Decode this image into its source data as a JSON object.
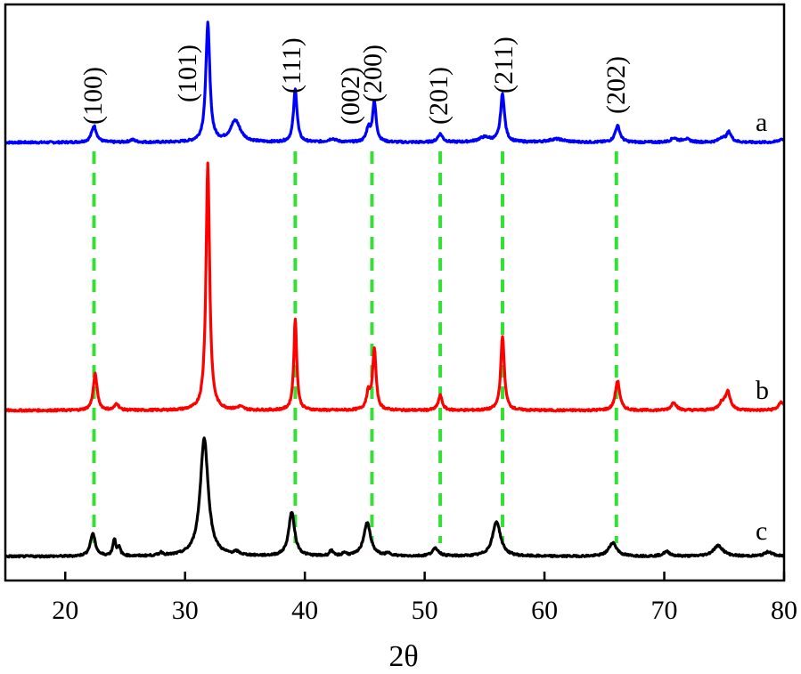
{
  "chart_data": {
    "type": "line",
    "title": "",
    "xlabel": "2θ",
    "ylabel": "",
    "xlim": [
      15,
      80
    ],
    "x_ticks": [
      20,
      30,
      40,
      50,
      60,
      70,
      80
    ],
    "y_ticks": false,
    "grid": false,
    "reference_line_color": "#33e033",
    "reference_lines_x": [
      22.4,
      39.2,
      45.6,
      51.3,
      56.5,
      66.0
    ],
    "peak_labels": [
      {
        "label": "(100)",
        "x": 22.4
      },
      {
        "label": "(101)",
        "x": 31.0
      },
      {
        "label": "(111)",
        "x": 39.2
      },
      {
        "label": "(002)",
        "x": 43.3
      },
      {
        "label": "(200)",
        "x": 45.9
      },
      {
        "label": "(201)",
        "x": 51.3
      },
      {
        "label": "(211)",
        "x": 56.5
      },
      {
        "label": "(202)",
        "x": 66.0
      }
    ],
    "series": [
      {
        "label": "a",
        "color": "#0000ff",
        "baseline": 0.0,
        "peaks": [
          {
            "x": 22.4,
            "height": 0.1,
            "width": 0.25
          },
          {
            "x": 25.6,
            "height": 0.015,
            "width": 0.3
          },
          {
            "x": 31.9,
            "height": 0.72,
            "width": 0.2
          },
          {
            "x": 34.2,
            "height": 0.13,
            "width": 0.5
          },
          {
            "x": 39.2,
            "height": 0.32,
            "width": 0.18
          },
          {
            "x": 42.3,
            "height": 0.02,
            "width": 0.4
          },
          {
            "x": 45.3,
            "height": 0.08,
            "width": 0.2
          },
          {
            "x": 45.8,
            "height": 0.24,
            "width": 0.18
          },
          {
            "x": 51.3,
            "height": 0.05,
            "width": 0.25
          },
          {
            "x": 55.0,
            "height": 0.03,
            "width": 0.6
          },
          {
            "x": 56.5,
            "height": 0.29,
            "width": 0.2
          },
          {
            "x": 61.0,
            "height": 0.02,
            "width": 0.8
          },
          {
            "x": 66.1,
            "height": 0.1,
            "width": 0.25
          },
          {
            "x": 70.8,
            "height": 0.025,
            "width": 0.3
          },
          {
            "x": 71.8,
            "height": 0.02,
            "width": 0.4
          },
          {
            "x": 74.8,
            "height": 0.025,
            "width": 0.3
          },
          {
            "x": 75.4,
            "height": 0.06,
            "width": 0.25
          },
          {
            "x": 79.8,
            "height": 0.02,
            "width": 0.3
          }
        ]
      },
      {
        "label": "b",
        "color": "#ff0000",
        "baseline": 0.0,
        "peaks": [
          {
            "x": 22.5,
            "height": 0.22,
            "width": 0.2
          },
          {
            "x": 24.3,
            "height": 0.04,
            "width": 0.2
          },
          {
            "x": 31.9,
            "height": 1.5,
            "width": 0.18
          },
          {
            "x": 34.6,
            "height": 0.02,
            "width": 0.3
          },
          {
            "x": 39.2,
            "height": 0.55,
            "width": 0.15
          },
          {
            "x": 45.3,
            "height": 0.1,
            "width": 0.2
          },
          {
            "x": 45.8,
            "height": 0.37,
            "width": 0.17
          },
          {
            "x": 51.3,
            "height": 0.09,
            "width": 0.2
          },
          {
            "x": 56.5,
            "height": 0.45,
            "width": 0.18
          },
          {
            "x": 66.1,
            "height": 0.18,
            "width": 0.22
          },
          {
            "x": 70.8,
            "height": 0.05,
            "width": 0.25
          },
          {
            "x": 74.8,
            "height": 0.04,
            "width": 0.3
          },
          {
            "x": 75.3,
            "height": 0.11,
            "width": 0.25
          },
          {
            "x": 79.8,
            "height": 0.05,
            "width": 0.3
          }
        ]
      },
      {
        "label": "c",
        "color": "#000000",
        "baseline": 0.0,
        "peaks": [
          {
            "x": 22.3,
            "height": 0.15,
            "width": 0.25
          },
          {
            "x": 24.1,
            "height": 0.11,
            "width": 0.15
          },
          {
            "x": 24.5,
            "height": 0.05,
            "width": 0.15
          },
          {
            "x": 28.0,
            "height": 0.02,
            "width": 0.2
          },
          {
            "x": 31.6,
            "height": 0.78,
            "width": 0.4
          },
          {
            "x": 34.3,
            "height": 0.02,
            "width": 0.3
          },
          {
            "x": 38.9,
            "height": 0.29,
            "width": 0.3
          },
          {
            "x": 42.2,
            "height": 0.04,
            "width": 0.15
          },
          {
            "x": 43.3,
            "height": 0.02,
            "width": 0.2
          },
          {
            "x": 45.2,
            "height": 0.22,
            "width": 0.35
          },
          {
            "x": 47.0,
            "height": 0.015,
            "width": 0.3
          },
          {
            "x": 50.9,
            "height": 0.05,
            "width": 0.35
          },
          {
            "x": 56.0,
            "height": 0.23,
            "width": 0.4
          },
          {
            "x": 65.7,
            "height": 0.09,
            "width": 0.4
          },
          {
            "x": 70.2,
            "height": 0.03,
            "width": 0.35
          },
          {
            "x": 74.5,
            "height": 0.07,
            "width": 0.5
          },
          {
            "x": 78.7,
            "height": 0.03,
            "width": 0.4
          }
        ]
      }
    ]
  }
}
